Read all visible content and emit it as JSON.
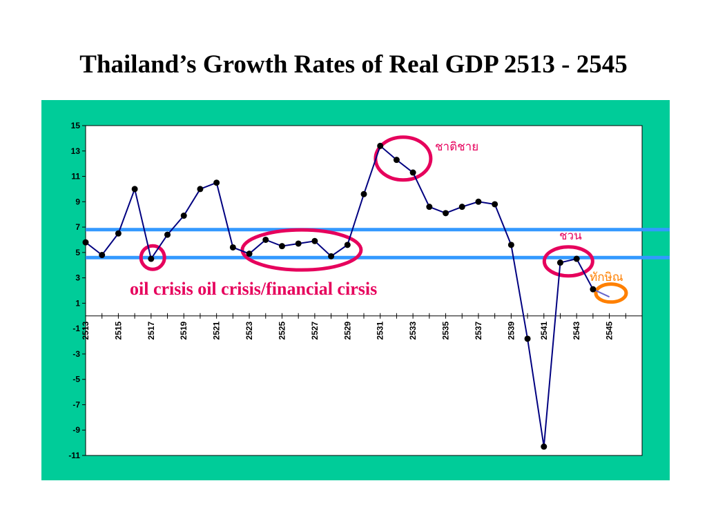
{
  "title": "Thailand’s Growth  Rates of Real GDP  2513 - 2545",
  "chart_data": {
    "type": "line",
    "title": "",
    "xlabel": "",
    "ylabel": "",
    "ylim": [
      -11,
      15
    ],
    "xlim": [
      2513,
      2547
    ],
    "grid": false,
    "yticks": [
      15,
      13,
      11,
      9,
      7,
      5,
      3,
      1,
      -1,
      -3,
      -5,
      -7,
      -9,
      -11
    ],
    "xticks": [
      2513,
      2515,
      2517,
      2519,
      2521,
      2523,
      2525,
      2527,
      2529,
      2531,
      2533,
      2535,
      2537,
      2539,
      2541,
      2543,
      2545
    ],
    "series": [
      {
        "x": [
          2513,
          2514,
          2515,
          2516,
          2517,
          2518,
          2519,
          2520,
          2521,
          2522,
          2523,
          2524,
          2525,
          2526,
          2527,
          2528,
          2529,
          2530,
          2531,
          2532,
          2533,
          2534,
          2535,
          2536,
          2537,
          2538,
          2539,
          2540,
          2541,
          2542,
          2543,
          2544,
          2545
        ],
        "y": [
          5.8,
          4.8,
          6.5,
          10.0,
          4.5,
          6.4,
          7.9,
          10.0,
          10.5,
          5.4,
          4.9,
          6.0,
          5.5,
          5.7,
          5.9,
          4.7,
          5.6,
          9.6,
          13.4,
          12.3,
          11.3,
          8.6,
          8.1,
          8.6,
          9.0,
          8.8,
          5.6,
          -1.8,
          -10.3,
          4.2,
          4.5,
          2.1,
          1.5
        ],
        "color": "#000080"
      }
    ],
    "reference_lines": [
      {
        "y": 6.8,
        "color": "#3399ff"
      },
      {
        "y": 4.6,
        "color": "#3399ff"
      }
    ],
    "annotations": [
      {
        "text": "ชาติชาย",
        "color": "#e6005c"
      },
      {
        "text": "ชวน",
        "color": "#e6005c"
      },
      {
        "text": "ทักษิณ",
        "color": "#ff8000"
      },
      {
        "text": "oil crisis  oil crisis/financial cirsis",
        "color": "#e6005c"
      }
    ]
  }
}
